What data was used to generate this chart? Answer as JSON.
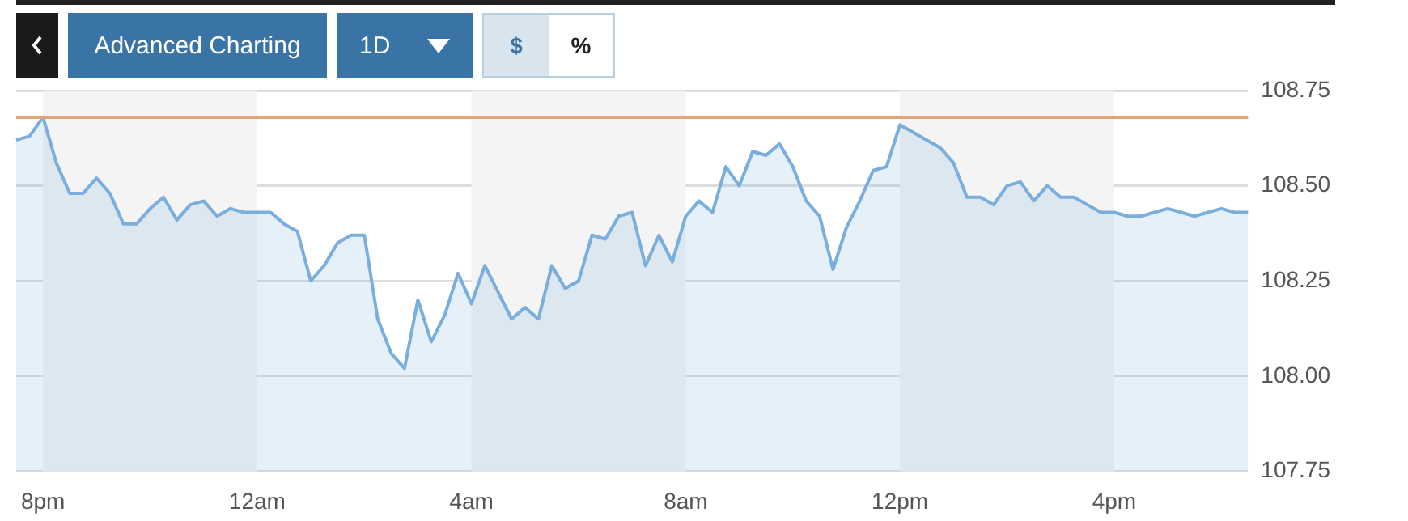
{
  "chart_data": {
    "type": "area",
    "annotations": [
      "Advanced Charting",
      "1D",
      "$",
      "%"
    ],
    "categories": [
      null,
      null,
      "8pm",
      null,
      null,
      null,
      null,
      null,
      null,
      null,
      null,
      null,
      null,
      null,
      null,
      null,
      null,
      null,
      "12am",
      null,
      null,
      null,
      null,
      null,
      null,
      null,
      null,
      null,
      null,
      null,
      null,
      null,
      null,
      null,
      "4am",
      null,
      null,
      null,
      null,
      null,
      null,
      null,
      null,
      null,
      null,
      null,
      null,
      null,
      null,
      null,
      "8am",
      null,
      null,
      null,
      null,
      null,
      null,
      null,
      null,
      null,
      null,
      null,
      null,
      null,
      null,
      null,
      "12pm",
      null,
      null,
      null,
      null,
      null,
      null,
      null,
      null,
      null,
      null,
      null,
      null,
      null,
      null,
      null,
      "4pm",
      null,
      null,
      null,
      null,
      null,
      null,
      null,
      null,
      null,
      null
    ],
    "series": [
      {
        "color": "#7aaedc",
        "values": [
          108.62,
          108.63,
          108.68,
          108.56,
          108.48,
          108.48,
          108.52,
          108.48,
          108.4,
          108.4,
          108.44,
          108.47,
          108.41,
          108.45,
          108.46,
          108.42,
          108.44,
          108.43,
          108.43,
          108.43,
          108.4,
          108.38,
          108.25,
          108.29,
          108.35,
          108.37,
          108.37,
          108.15,
          108.06,
          108.02,
          108.2,
          108.09,
          108.16,
          108.27,
          108.19,
          108.29,
          108.22,
          108.15,
          108.18,
          108.15,
          108.29,
          108.23,
          108.25,
          108.37,
          108.36,
          108.42,
          108.43,
          108.29,
          108.37,
          108.3,
          108.42,
          108.46,
          108.43,
          108.55,
          108.5,
          108.59,
          108.58,
          108.61,
          108.55,
          108.46,
          108.42,
          108.28,
          108.39,
          108.46,
          108.54,
          108.55,
          108.66,
          108.64,
          108.62,
          108.6,
          108.56,
          108.47,
          108.47,
          108.45,
          108.5,
          108.51,
          108.46,
          108.5,
          108.47,
          108.47,
          108.45,
          108.43,
          108.43,
          108.42,
          108.42,
          108.43,
          108.44,
          108.43,
          108.42,
          108.43,
          108.44,
          108.43,
          108.43
        ]
      }
    ],
    "ylim": [
      107.75,
      108.75
    ],
    "yticks": [
      {
        "value": 107.75,
        "label": "107.75"
      },
      {
        "value": 108.0,
        "label": "108.00"
      },
      {
        "value": 108.25,
        "label": "108.25"
      },
      {
        "value": 108.5,
        "label": "108.50"
      },
      {
        "value": 108.75,
        "label": "108.75"
      }
    ],
    "ref_lines": [
      {
        "axis": "y",
        "value": 108.68,
        "color": "#e0a57a"
      }
    ],
    "bands": [
      {
        "axis": "x",
        "from": "8pm",
        "to": "12am",
        "color": "#f4f4f4"
      },
      {
        "axis": "x",
        "from": "4am",
        "to": "8am",
        "color": "#f4f4f4"
      },
      {
        "axis": "x",
        "from": "12pm",
        "to": "4pm",
        "color": "#f4f4f4"
      }
    ],
    "grid": "y",
    "marker": "none",
    "line_style": "solid",
    "legend": false
  }
}
